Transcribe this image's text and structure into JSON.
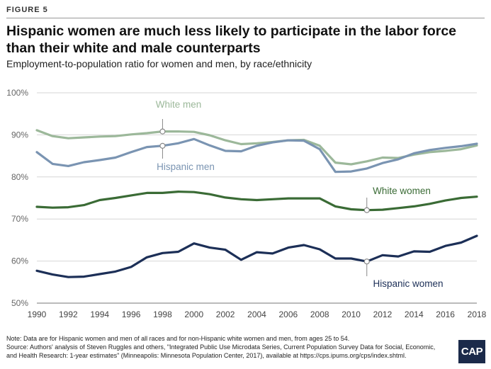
{
  "figure_label": "FIGURE 5",
  "title": "Hispanic women are much less likely to participate in the labor force than their white and male counterparts",
  "subtitle": "Employment-to-population ratio for women and men, by race/ethnicity",
  "footer": {
    "note": "Note: Data are for Hispanic women and men of all races and for non-Hispanic white women and men, from ages 25 to 54.",
    "source": "Source: Authors' analysis of Steven Ruggles and others, \"Integrated Public Use Microdata Series, Current Population Survey Data for Social, Economic, and Health Research: 1-year estimates\" (Minneapolis: Minnesota Population Center, 2017), available at https://cps.ipums.org/cps/index.shtml."
  },
  "logo_text": "CAP",
  "chart_data": {
    "type": "line",
    "x": [
      1990,
      1991,
      1992,
      1993,
      1994,
      1995,
      1996,
      1997,
      1998,
      1999,
      2000,
      2001,
      2002,
      2003,
      2004,
      2005,
      2006,
      2007,
      2008,
      2009,
      2010,
      2011,
      2012,
      2013,
      2014,
      2015,
      2016,
      2017,
      2018
    ],
    "x_ticks": [
      "1990",
      "1992",
      "1994",
      "1996",
      "1998",
      "2000",
      "2002",
      "2004",
      "2006",
      "2008",
      "2010",
      "2012",
      "2014",
      "2016",
      "2018"
    ],
    "y_ticks": [
      "50%",
      "60%",
      "70%",
      "80%",
      "90%",
      "100%"
    ],
    "ylim": [
      50,
      100
    ],
    "grid": true,
    "series": [
      {
        "name": "White men",
        "color": "#9cb89a",
        "values": [
          91.1,
          89.7,
          89.2,
          89.4,
          89.6,
          89.7,
          90.1,
          90.4,
          90.8,
          90.8,
          90.7,
          89.9,
          88.7,
          87.8,
          88.0,
          88.3,
          88.7,
          88.8,
          87.4,
          83.4,
          83.0,
          83.7,
          84.6,
          84.5,
          85.3,
          85.9,
          86.2,
          86.6,
          87.5
        ]
      },
      {
        "name": "Hispanic men",
        "color": "#7a94b2",
        "values": [
          85.9,
          83.1,
          82.6,
          83.5,
          84.0,
          84.6,
          85.9,
          87.1,
          87.4,
          88.0,
          89.0,
          87.5,
          86.2,
          86.1,
          87.4,
          88.2,
          88.7,
          88.6,
          86.6,
          81.2,
          81.3,
          82.0,
          83.3,
          84.2,
          85.6,
          86.4,
          86.9,
          87.3,
          87.9
        ]
      },
      {
        "name": "White women",
        "color": "#3a6b35",
        "values": [
          72.9,
          72.7,
          72.8,
          73.3,
          74.5,
          75.0,
          75.6,
          76.2,
          76.2,
          76.5,
          76.4,
          75.9,
          75.1,
          74.7,
          74.5,
          74.7,
          74.9,
          74.9,
          74.9,
          73.0,
          72.3,
          72.1,
          72.2,
          72.6,
          73.0,
          73.6,
          74.4,
          75.0,
          75.3
        ]
      },
      {
        "name": "Hispanic women",
        "color": "#1c2f57",
        "values": [
          57.7,
          56.8,
          56.2,
          56.3,
          56.9,
          57.5,
          58.6,
          60.9,
          61.9,
          62.2,
          64.2,
          63.2,
          62.7,
          60.3,
          62.1,
          61.8,
          63.2,
          63.8,
          62.8,
          60.6,
          60.6,
          59.9,
          61.4,
          61.1,
          62.3,
          62.2,
          63.6,
          64.4,
          66.0
        ]
      }
    ]
  }
}
